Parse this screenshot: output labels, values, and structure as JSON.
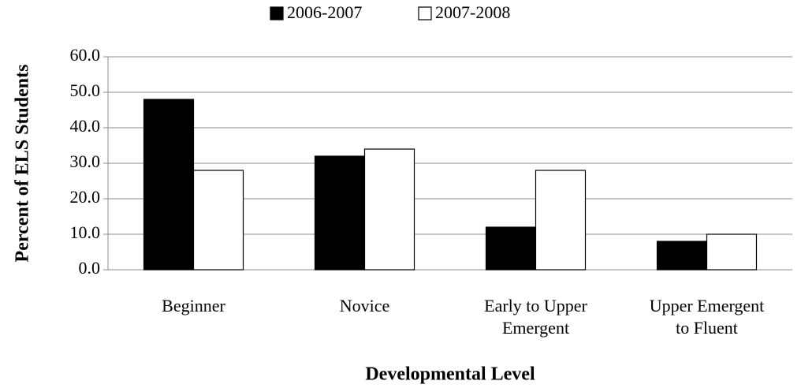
{
  "chart_data": {
    "type": "bar",
    "categories": [
      "Beginner",
      "Novice",
      "Early to Upper Emergent",
      "Upper Emergent to Fluent"
    ],
    "series": [
      {
        "name": "2006-2007",
        "color": "#000000",
        "values": [
          48,
          32,
          12,
          8
        ]
      },
      {
        "name": "2007-2008",
        "color": "#ffffff",
        "values": [
          28,
          34,
          28,
          10
        ]
      }
    ],
    "ylabel": "Percent of ELS Students",
    "xlabel": "Developmental Level",
    "ylim": [
      0,
      60
    ],
    "yticks": [
      {
        "value": 0,
        "label": "0.0"
      },
      {
        "value": 10,
        "label": "10.0"
      },
      {
        "value": 20,
        "label": "20.0"
      },
      {
        "value": 30,
        "label": "30.0"
      },
      {
        "value": 40,
        "label": "40.0"
      },
      {
        "value": 50,
        "label": "50.0"
      },
      {
        "value": 60,
        "label": "60.0"
      }
    ],
    "grid": true,
    "legend": "top"
  }
}
